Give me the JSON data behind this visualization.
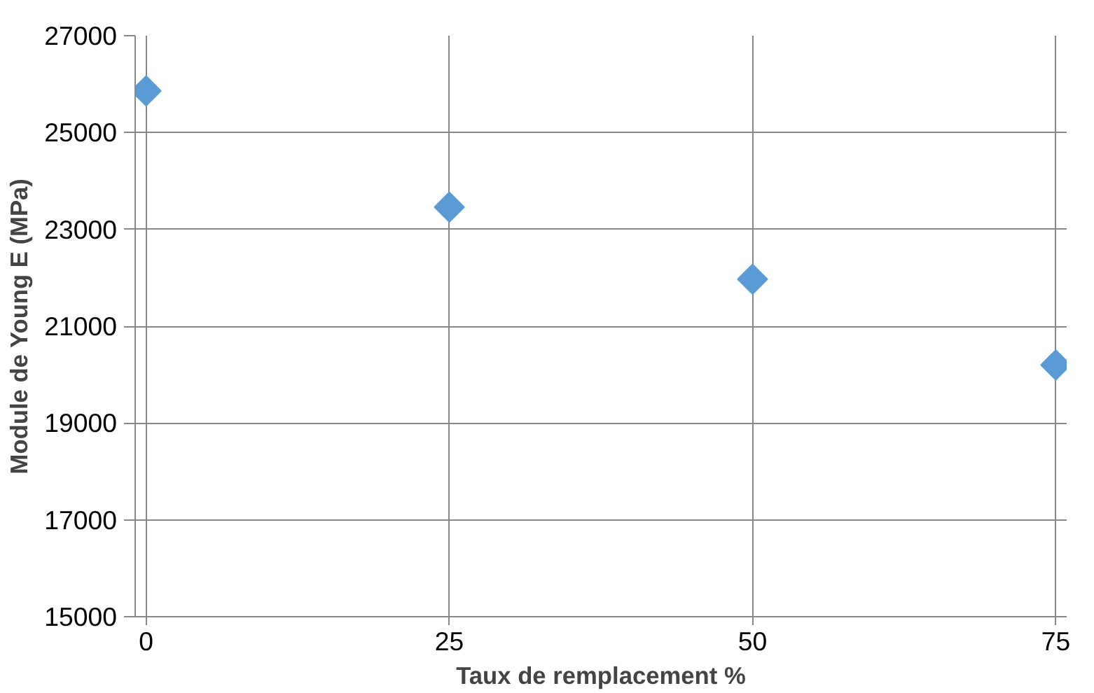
{
  "chart_data": {
    "type": "scatter",
    "xlabel": "Taux de remplacement %",
    "ylabel": "Module de Young E (MPa)",
    "x": [
      0,
      25,
      50,
      75
    ],
    "series": [
      {
        "color": "#5b9bd5",
        "values": [
          25860,
          23460,
          21970,
          20200
        ]
      }
    ],
    "xlim": [
      0,
      75
    ],
    "xticks": [
      0,
      25,
      50,
      75
    ],
    "ylim": [
      15000,
      27000
    ],
    "yticks": [
      15000,
      17000,
      19000,
      21000,
      23000,
      25000,
      27000
    ],
    "grid": true,
    "marker": "diamond"
  }
}
